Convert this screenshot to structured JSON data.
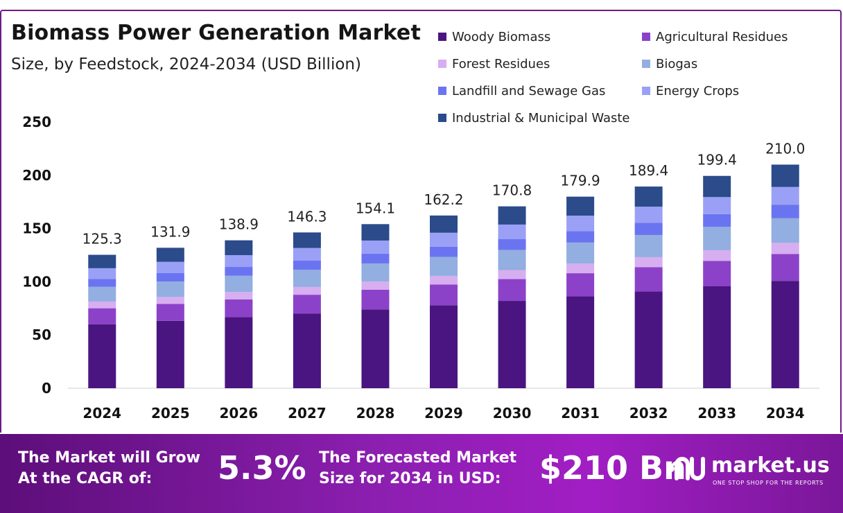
{
  "header": {
    "title": "Biomass Power Generation Market",
    "subtitle": "Size, by Feedstock, 2024-2034 (USD Billion)"
  },
  "footer": {
    "cagr_text_line1": "The Market will Grow",
    "cagr_text_line2": "At the CAGR of:",
    "cagr_value": "5.3%",
    "forecast_text_line1": "The Forecasted Market",
    "forecast_text_line2": "Size for 2034 in USD:",
    "forecast_value": "$210 Bn",
    "brand_name": "market.us",
    "brand_tagline": "ONE STOP SHOP FOR THE REPORTS"
  },
  "colors": {
    "frame": "#6a1b8a",
    "footer_start": "#5d0e7a",
    "footer_end": "#a11ec4"
  },
  "chart_data": {
    "type": "bar",
    "stacked": true,
    "categories": [
      "2024",
      "2025",
      "2026",
      "2027",
      "2028",
      "2029",
      "2030",
      "2031",
      "2032",
      "2033",
      "2034"
    ],
    "totals": [
      "125.3",
      "131.9",
      "138.9",
      "146.3",
      "154.1",
      "162.2",
      "170.8",
      "179.9",
      "189.4",
      "199.4",
      "210.0"
    ],
    "ylim": [
      0,
      250
    ],
    "yticks": [
      0,
      50,
      100,
      150,
      200,
      250
    ],
    "grid": false,
    "legend_position": "top-right",
    "series": [
      {
        "name": "Woody Biomass",
        "color": "#4a1580",
        "values": [
          60.1,
          63.3,
          66.7,
          70.2,
          74.0,
          77.9,
          82.0,
          86.4,
          90.9,
          95.7,
          100.8
        ]
      },
      {
        "name": "Agricultural Residues",
        "color": "#8b42c8",
        "values": [
          15.0,
          15.8,
          16.7,
          17.6,
          18.5,
          19.5,
          20.5,
          21.6,
          22.7,
          23.9,
          25.2
        ]
      },
      {
        "name": "Forest Residues",
        "color": "#d7aef0",
        "values": [
          6.3,
          6.6,
          6.9,
          7.3,
          7.7,
          8.1,
          8.5,
          9.0,
          9.5,
          10.0,
          10.5
        ]
      },
      {
        "name": "Biogas",
        "color": "#93aee0",
        "values": [
          13.8,
          14.5,
          15.3,
          16.1,
          17.0,
          17.8,
          18.8,
          19.8,
          20.8,
          21.9,
          23.1
        ]
      },
      {
        "name": "Landfill and Sewage Gas",
        "color": "#6b74f0",
        "values": [
          7.5,
          7.9,
          8.3,
          8.8,
          9.2,
          9.7,
          10.2,
          10.8,
          11.4,
          12.0,
          12.6
        ]
      },
      {
        "name": "Energy Crops",
        "color": "#9aa0f5",
        "values": [
          10.0,
          10.6,
          11.1,
          11.7,
          12.3,
          13.0,
          13.7,
          14.4,
          15.2,
          16.0,
          16.8
        ]
      },
      {
        "name": "Industrial & Municipal Waste",
        "color": "#2b4b8a",
        "values": [
          12.6,
          13.2,
          13.9,
          14.6,
          15.4,
          16.2,
          17.1,
          17.9,
          18.9,
          19.9,
          21.0
        ]
      }
    ]
  }
}
